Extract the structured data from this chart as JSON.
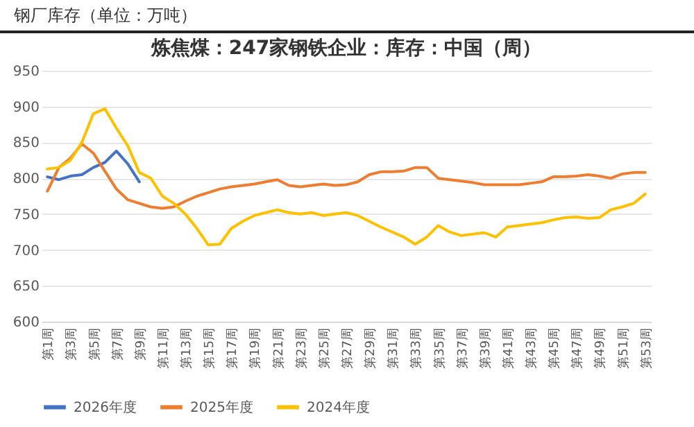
{
  "chart_data": {
    "type": "line",
    "title": "炼焦煤：247家钢铁企业：库存：中国（周）",
    "annotations": [
      "钢厂库存（单位：万吨）"
    ],
    "categories": [
      "第1周",
      null,
      "第3周",
      null,
      "第5周",
      null,
      "第7周",
      null,
      "第9周",
      null,
      "第11周",
      null,
      "第13周",
      null,
      "第15周",
      null,
      "第17周",
      null,
      "第19周",
      null,
      "第21周",
      null,
      "第23周",
      null,
      "第25周",
      null,
      "第27周",
      null,
      "第29周",
      null,
      "第31周",
      null,
      "第33周",
      null,
      "第35周",
      null,
      "第37周",
      null,
      "第39周",
      null,
      "第41周",
      null,
      "第43周",
      null,
      "第45周",
      null,
      "第47周",
      null,
      "第49周",
      null,
      "第51周",
      null,
      "第53周"
    ],
    "series": [
      {
        "name": "2026年度",
        "color": "#4472c4",
        "values": [
          802,
          798,
          803,
          805,
          815,
          822,
          838,
          820,
          795,
          null,
          null,
          null,
          null,
          null,
          null,
          null,
          null,
          null,
          null,
          null,
          null,
          null,
          null,
          null,
          null,
          null,
          null,
          null,
          null,
          null,
          null,
          null,
          null,
          null,
          null,
          null,
          null,
          null,
          null,
          null,
          null,
          null,
          null,
          null,
          null,
          null,
          null,
          null,
          null,
          null,
          null,
          null,
          null
        ]
      },
      {
        "name": "2025年度",
        "color": "#ed7d31",
        "values": [
          782,
          815,
          828,
          848,
          835,
          810,
          785,
          770,
          765,
          760,
          758,
          760,
          768,
          775,
          780,
          785,
          788,
          790,
          792,
          795,
          798,
          790,
          788,
          790,
          792,
          790,
          791,
          795,
          805,
          809,
          809,
          810,
          815,
          815,
          800,
          798,
          796,
          794,
          791,
          791,
          791,
          791,
          793,
          795,
          802,
          802,
          803,
          805,
          803,
          800,
          806,
          808,
          808
        ]
      },
      {
        "name": "2024年度",
        "color": "#ffc000",
        "values": [
          813,
          815,
          825,
          850,
          890,
          897,
          870,
          845,
          808,
          800,
          775,
          765,
          750,
          730,
          707,
          708,
          730,
          740,
          748,
          752,
          756,
          752,
          750,
          752,
          748,
          750,
          752,
          748,
          740,
          732,
          725,
          718,
          708,
          718,
          734,
          725,
          720,
          722,
          724,
          718,
          732,
          734,
          736,
          738,
          742,
          745,
          746,
          744,
          745,
          756,
          760,
          765,
          778
        ]
      }
    ],
    "ylim": [
      600,
      950
    ],
    "yticks": [
      600,
      650,
      700,
      750,
      800,
      850,
      900,
      950
    ],
    "grid": "y",
    "legend": "bottom",
    "line_style": "solid"
  }
}
